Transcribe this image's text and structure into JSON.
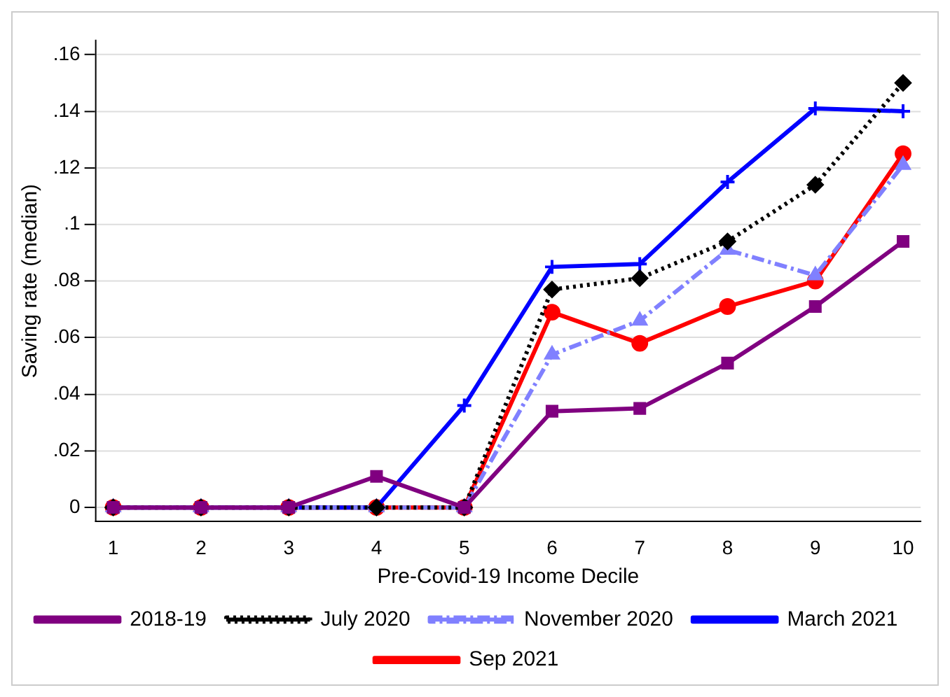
{
  "chart_data": {
    "type": "line",
    "xlabel": "Pre-Covid-19 Income Decile",
    "ylabel": "Saving rate (median)",
    "x": [
      1,
      2,
      3,
      4,
      5,
      6,
      7,
      8,
      9,
      10
    ],
    "xlim": [
      0.8,
      10.2
    ],
    "xticks": [
      1,
      2,
      3,
      4,
      5,
      6,
      7,
      8,
      9,
      10
    ],
    "ylim": [
      -0.005,
      0.165
    ],
    "yticks": [
      0,
      {
        "value": 0.02,
        "label": ".02"
      },
      {
        "value": 0.04,
        "label": ".04"
      },
      {
        "value": 0.06,
        "label": ".06"
      },
      {
        "value": 0.08,
        "label": ".08"
      },
      {
        "value": 0.1,
        "label": ".1"
      },
      {
        "value": 0.12,
        "label": ".12"
      },
      {
        "value": 0.14,
        "label": ".14"
      },
      {
        "value": 0.16,
        "label": ".16"
      }
    ],
    "grid": "y",
    "legend": "bottom",
    "series": [
      {
        "name": "2018-19",
        "color": "#800080",
        "marker": "square",
        "line_style": "solid",
        "values": [
          0,
          0,
          0,
          0.011,
          0,
          0.034,
          0.035,
          0.051,
          0.071,
          0.094
        ]
      },
      {
        "name": "July 2020",
        "color": "#000000",
        "marker": "diamond",
        "line_style": "dotted",
        "values": [
          0,
          0,
          0,
          0,
          0,
          0.077,
          0.081,
          0.094,
          0.114,
          0.15
        ]
      },
      {
        "name": "November 2020",
        "color": "#8080ff",
        "marker": "triangle",
        "line_style": "dashed",
        "values": [
          0,
          0,
          0,
          0,
          0,
          0.054,
          0.066,
          0.091,
          0.082,
          0.121
        ]
      },
      {
        "name": "March 2021",
        "color": "#0000ff",
        "marker": "cross",
        "line_style": "solid",
        "values": [
          0,
          0,
          0,
          0,
          0.036,
          0.085,
          0.086,
          0.115,
          0.141,
          0.14
        ]
      },
      {
        "name": "Sep 2021",
        "color": "#ff0000",
        "marker": "circle",
        "line_style": "solid",
        "values": [
          0,
          0,
          0,
          0,
          0,
          0.069,
          0.058,
          0.071,
          0.08,
          0.125
        ]
      }
    ]
  }
}
